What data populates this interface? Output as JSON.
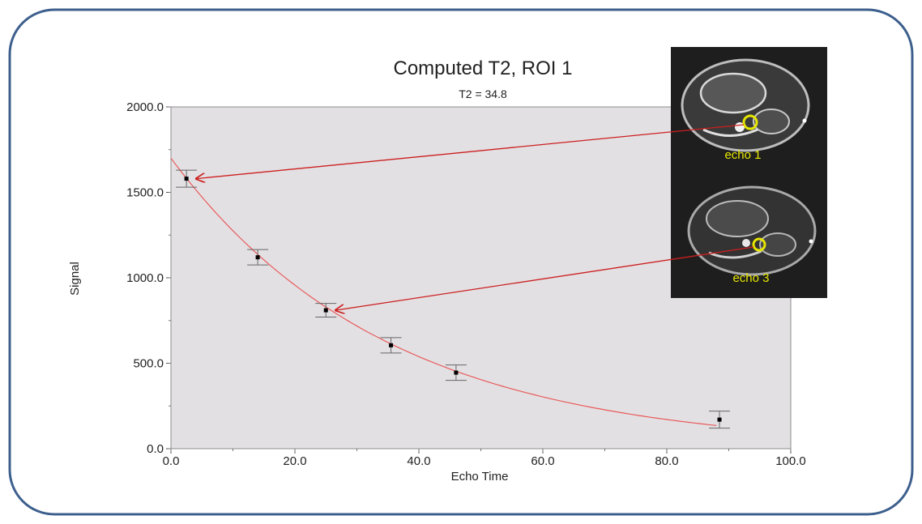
{
  "chart_data": {
    "type": "scatter",
    "title": "Computed T2, ROI 1",
    "subtitle": "T2 = 34.8",
    "xlabel": "Echo Time",
    "ylabel": "Signal",
    "xlim": [
      0,
      100
    ],
    "ylim": [
      0,
      2000
    ],
    "x_ticks": [
      "0.0",
      "20.0",
      "40.0",
      "60.0",
      "80.0",
      "100.0"
    ],
    "y_ticks": [
      "0.0",
      "500.0",
      "1000.0",
      "1500.0",
      "2000.0"
    ],
    "grid": false,
    "points": [
      {
        "x": 2.5,
        "y": 1580,
        "err": 50
      },
      {
        "x": 14,
        "y": 1120,
        "err": 45
      },
      {
        "x": 25,
        "y": 810,
        "err": 40
      },
      {
        "x": 35.5,
        "y": 605,
        "err": 45
      },
      {
        "x": 46,
        "y": 445,
        "err": 45
      },
      {
        "x": 88.5,
        "y": 170,
        "err": 50
      }
    ],
    "fit": {
      "type": "exponential",
      "s0": 1700,
      "t2": 34.8,
      "x_range": [
        0,
        88
      ]
    },
    "annotations": [
      {
        "label": "echo 1",
        "points_to_x": 2.5,
        "points_to_y": 1580
      },
      {
        "label": "echo 3",
        "points_to_x": 25,
        "points_to_y": 810
      }
    ]
  },
  "colors": {
    "plot_background": "#e3e0e3",
    "fit_line": "#e85a5a",
    "arrow": "#cc1f1f",
    "frame": "#3d5f8d",
    "roi_circle": "#e6e600",
    "label_text": "#e6e600"
  }
}
